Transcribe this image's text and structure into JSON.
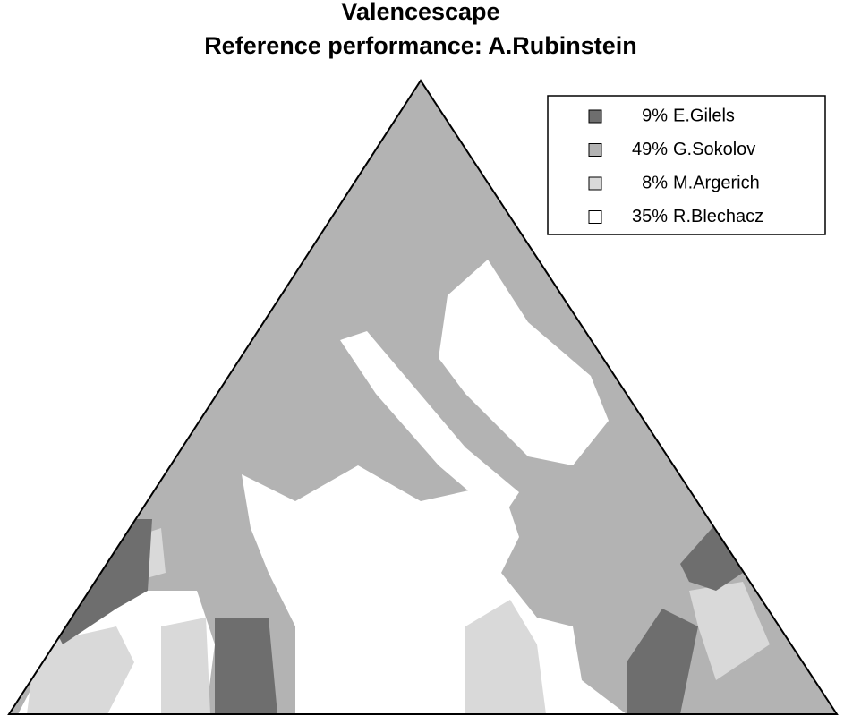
{
  "chart_data": {
    "type": "valencescape",
    "title": "Valencescape",
    "subtitle": "Reference performance: A.Rubinstein",
    "series": [
      {
        "name": "E.Gilels",
        "color": "#6e6e6e",
        "value": 9,
        "value_label": "9%"
      },
      {
        "name": "G.Sokolov",
        "color": "#b3b3b3",
        "value": 49,
        "value_label": "49%"
      },
      {
        "name": "M.Argerich",
        "color": "#d9d9d9",
        "value": 8,
        "value_label": "8%"
      },
      {
        "name": "R.Blechacz",
        "color": "#ffffff",
        "value": 35,
        "value_label": "35%"
      }
    ],
    "legend": "top-right"
  }
}
